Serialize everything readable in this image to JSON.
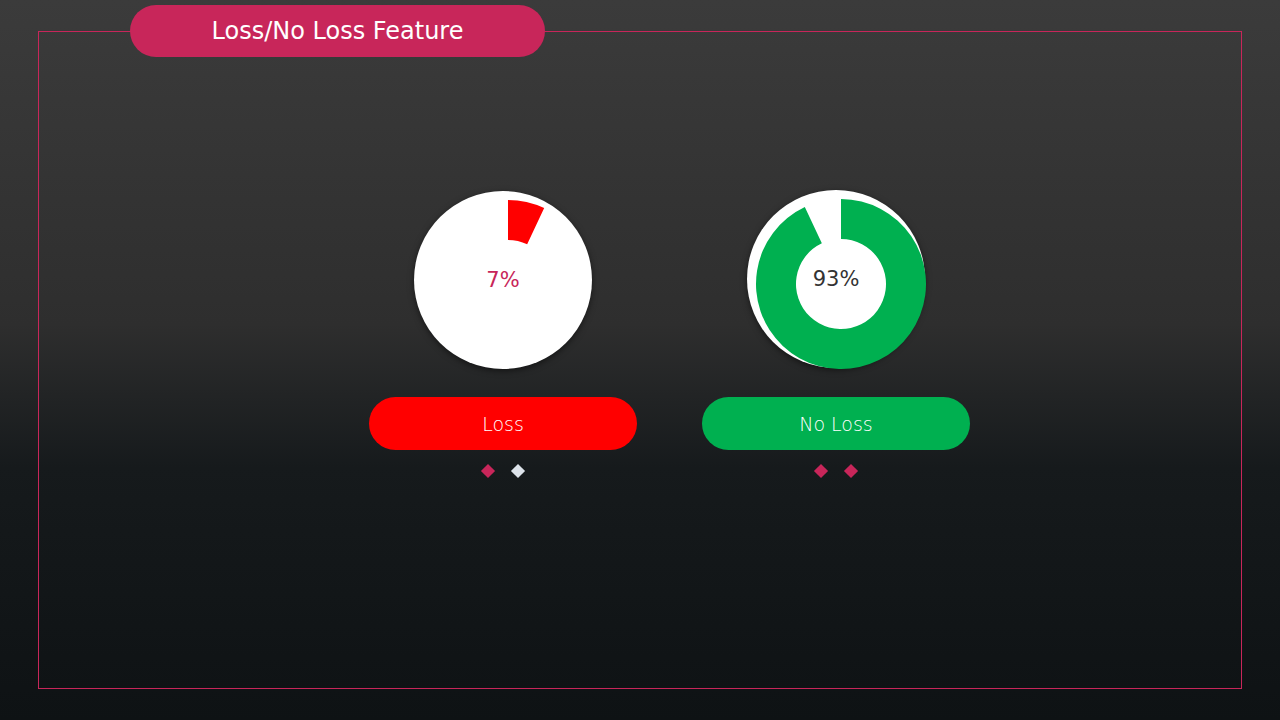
{
  "chart_data": {
    "type": "pie",
    "title": "Loss/No Loss Feature",
    "categories": [
      "Loss",
      "No Loss"
    ],
    "values": [
      7,
      93
    ],
    "value_labels": [
      "7%",
      "93%"
    ],
    "colors": [
      "#ff0000",
      "#00b050"
    ]
  }
}
